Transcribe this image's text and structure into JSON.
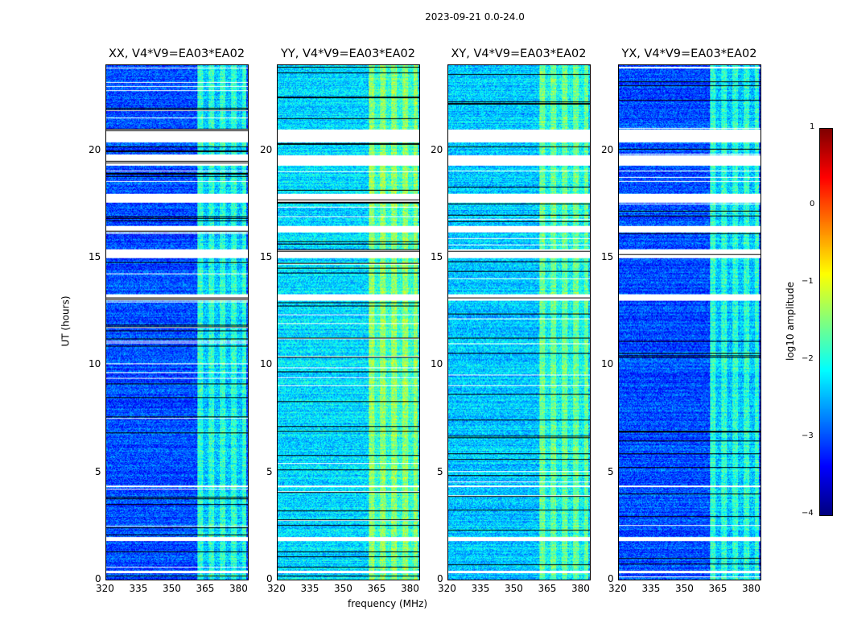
{
  "chart_data": {
    "type": "heatmap",
    "title": "2023-09-21 0.0-24.0",
    "xlabel": "frequency (MHz)",
    "ylabel": "UT (hours)",
    "xlim": [
      320,
      384
    ],
    "ylim": [
      0,
      24
    ],
    "xticks": [
      "320",
      "335",
      "350",
      "365",
      "380"
    ],
    "yticks": [
      "0",
      "5",
      "10",
      "15",
      "20"
    ],
    "panels": [
      {
        "title": "XX, V4*V9=EA03*EA02",
        "base_level": -3.0,
        "rfi_level": -2.2
      },
      {
        "title": "YY, V4*V9=EA03*EA02",
        "base_level": -2.3,
        "rfi_level": -1.7
      },
      {
        "title": "XY, V4*V9=EA03*EA02",
        "base_level": -2.4,
        "rfi_level": -1.9
      },
      {
        "title": "YX, V4*V9=EA03*EA02",
        "base_level": -3.0,
        "rfi_level": -2.2
      }
    ],
    "rfi_band_mhz": [
      361,
      383
    ],
    "flagged_hours": [
      [
        19.3,
        19.8
      ],
      [
        20.4,
        21.0
      ],
      [
        17.6,
        18.0
      ],
      [
        15.0,
        15.4
      ],
      [
        16.2,
        16.5
      ],
      [
        13.0,
        13.3
      ],
      [
        4.3,
        4.4
      ],
      [
        1.8,
        2.0
      ],
      [
        0.3,
        0.4
      ]
    ],
    "colorbar": {
      "label": "log10 amplitude",
      "range": [
        -4,
        1
      ],
      "ticks": [
        "1",
        "0",
        "−1",
        "−2",
        "−3",
        "−4"
      ],
      "colormap": "jet"
    }
  }
}
